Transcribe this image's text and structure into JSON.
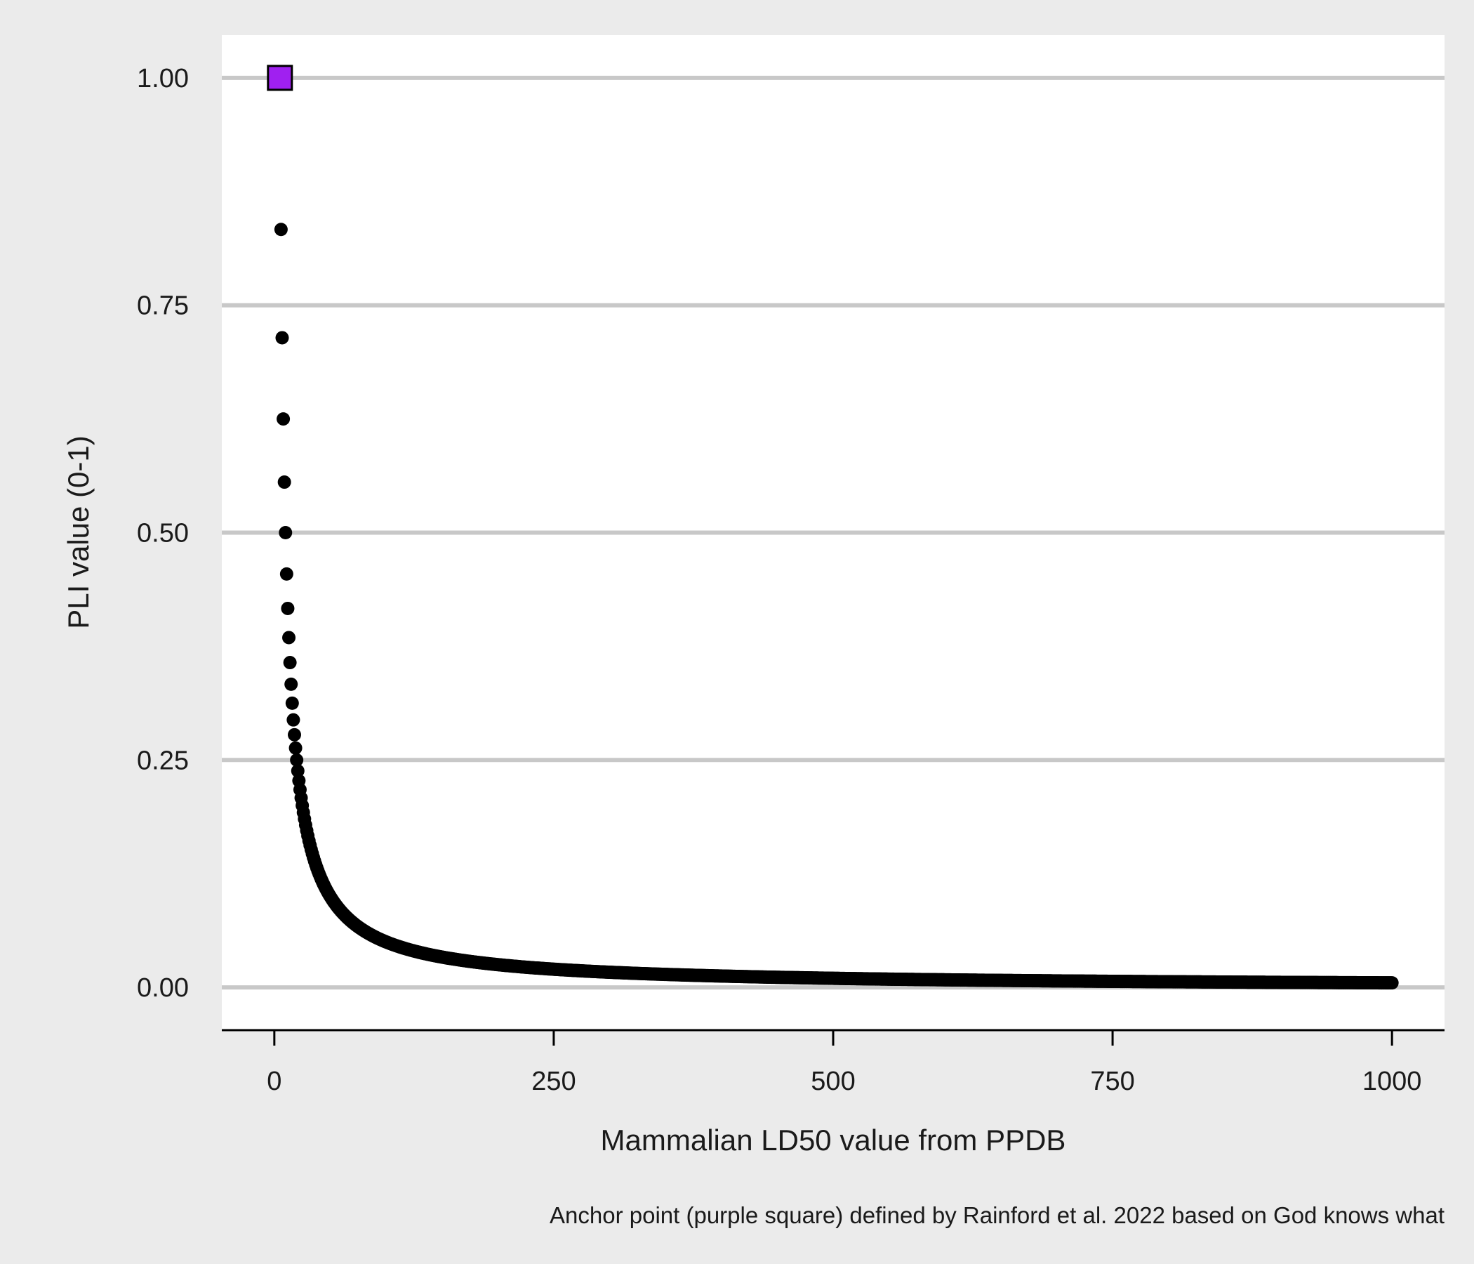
{
  "chart_data": {
    "type": "scatter",
    "title": "",
    "xlabel": "Mammalian LD50 value from PPDB",
    "ylabel": "PLI value (0-1)",
    "caption": "Anchor point (purple square) defined by Rainford et al. 2022 based on God knows what",
    "xlim": [
      -47,
      1047
    ],
    "ylim": [
      -0.047,
      1.047
    ],
    "x_ticks": [
      0,
      250,
      500,
      750,
      1000
    ],
    "x_tick_labels": [
      "0",
      "250",
      "500",
      "750",
      "1000"
    ],
    "y_ticks": [
      0,
      0.25,
      0.5,
      0.75,
      1
    ],
    "y_tick_labels": [
      "0.00",
      "0.25",
      "0.50",
      "0.75",
      "1.00"
    ],
    "grid": "horizontal major gridlines",
    "series": [
      {
        "function": "PLI = 5 / LD50",
        "x_range": [
          5,
          1000
        ],
        "x_step": 1,
        "marker": "circle",
        "color": "#000000"
      }
    ],
    "anchor_point": {
      "x": 5,
      "y": 1.0,
      "marker": "square",
      "color": "#a020f0"
    },
    "colors": {
      "page_background": "#ebebeb",
      "panel_background": "#ffffff",
      "gridline": "#c8c8c8",
      "points": "#000000",
      "anchor_fill": "#a020f0",
      "axis_line": "#000000"
    }
  }
}
